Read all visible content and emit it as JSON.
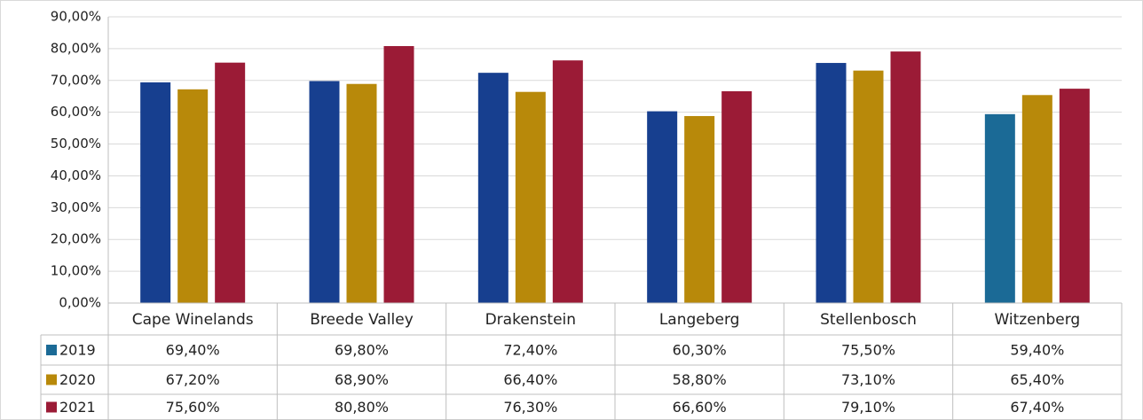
{
  "chart_data": {
    "type": "bar",
    "categories": [
      "Cape Winelands",
      "Breede Valley",
      "Drakenstein",
      "Langeberg",
      "Stellenbosch",
      "Witzenberg"
    ],
    "series": [
      {
        "name": "2019",
        "color": "#1b6a96",
        "point_colors": [
          "#173f8f",
          "#173f8f",
          "#173f8f",
          "#173f8f",
          "#173f8f",
          "#1b6a96"
        ],
        "values": [
          69.4,
          69.8,
          72.4,
          60.3,
          75.5,
          59.4
        ],
        "value_labels": [
          "69,40%",
          "69,80%",
          "72,40%",
          "60,30%",
          "75,50%",
          "59,40%"
        ]
      },
      {
        "name": "2020",
        "color": "#b8890a",
        "values": [
          67.2,
          68.9,
          66.4,
          58.8,
          73.1,
          65.4
        ],
        "value_labels": [
          "67,20%",
          "68,90%",
          "66,40%",
          "58,80%",
          "73,10%",
          "65,40%"
        ]
      },
      {
        "name": "2021",
        "color": "#9b1b36",
        "values": [
          75.6,
          80.8,
          76.3,
          66.6,
          79.1,
          67.4
        ],
        "value_labels": [
          "75,60%",
          "80,80%",
          "76,30%",
          "66,60%",
          "79,10%",
          "67,40%"
        ]
      }
    ],
    "ylim": [
      0,
      90
    ],
    "yticks": [
      {
        "value": 0,
        "label": "0,00%"
      },
      {
        "value": 10,
        "label": "10,00%"
      },
      {
        "value": 20,
        "label": "20,00%"
      },
      {
        "value": 30,
        "label": "30,00%"
      },
      {
        "value": 40,
        "label": "40,00%"
      },
      {
        "value": 50,
        "label": "50,00%"
      },
      {
        "value": 60,
        "label": "60,00%"
      },
      {
        "value": 70,
        "label": "70,00%"
      },
      {
        "value": 80,
        "label": "80,00%"
      },
      {
        "value": 90,
        "label": "90,00%"
      }
    ],
    "grid": true,
    "data_table": true
  }
}
